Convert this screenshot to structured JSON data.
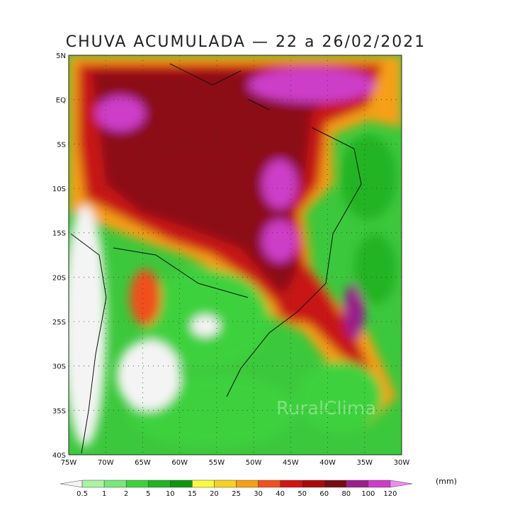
{
  "title": "CHUVA ACUMULADA — 22 a 26/02/2021",
  "lat_labels": [
    "5N",
    "EQ",
    "5S",
    "10S",
    "15S",
    "20S",
    "25S",
    "30S",
    "35S",
    "40S"
  ],
  "lon_labels": [
    "75W",
    "70W",
    "65W",
    "60W",
    "55W",
    "50W",
    "45W",
    "40W",
    "35W",
    "30W"
  ],
  "legend": {
    "unit": "(mm)",
    "labels": [
      "0.5",
      "1",
      "2",
      "5",
      "10",
      "15",
      "20",
      "25",
      "30",
      "40",
      "50",
      "60",
      "80",
      "100",
      "120"
    ],
    "colors": [
      "#f4f4f4",
      "#a8f5a0",
      "#78e878",
      "#3cd23c",
      "#22b422",
      "#0f960f",
      "#fafa3c",
      "#f5d21e",
      "#f5a014",
      "#f0501e",
      "#d21414",
      "#aa0a0a",
      "#780a14",
      "#9b1e8c",
      "#cd3cc8",
      "#f08cf0"
    ]
  },
  "watermark": "RuralClima"
}
